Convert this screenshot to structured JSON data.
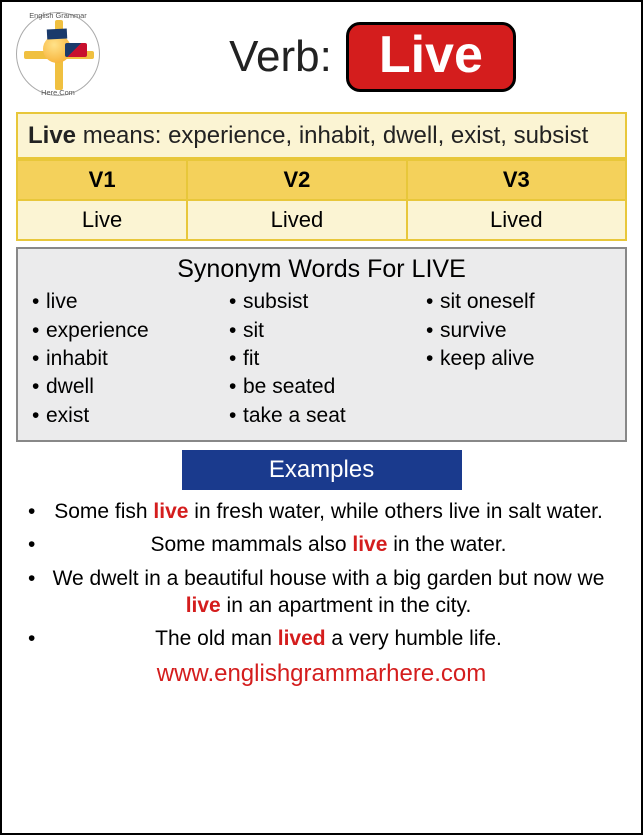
{
  "logo": {
    "top_text": "English Grammar",
    "bottom_text": "Here.Com"
  },
  "header": {
    "verb_label": "Verb:",
    "verb_word": "Live"
  },
  "definition": {
    "word": "Live",
    "remainder": " means: experience, inhabit, dwell, exist, subsist"
  },
  "verb_forms": {
    "columns": [
      "V1",
      "V2",
      "V3"
    ],
    "rows": [
      [
        "Live",
        "Lived",
        "Lived"
      ]
    ],
    "header_bg": "#f4d15b",
    "cell_bg": "#fbf4d3",
    "border_color": "#e8c73a",
    "font_size": 22
  },
  "synonyms": {
    "title": "Synonym Words For LIVE",
    "col1": [
      "live",
      "experience",
      "inhabit",
      "dwell",
      "exist"
    ],
    "col2": [
      "subsist",
      "sit",
      "fit",
      "be seated",
      "take a seat"
    ],
    "col3": [
      "sit oneself",
      "survive",
      "keep alive"
    ],
    "box_bg": "#ebebec",
    "title_fontsize": 25,
    "item_fontsize": 21
  },
  "examples": {
    "header": "Examples",
    "header_bg": "#1a3a8d",
    "highlight_color": "#d41d1d",
    "items": [
      {
        "pre": "Some fish ",
        "hl": "live",
        "post": " in fresh water, while others live in salt water."
      },
      {
        "pre": "Some mammals also ",
        "hl": "live",
        "post": " in the water."
      },
      {
        "pre": "We dwelt in a beautiful house with a big garden but now we ",
        "hl": "live",
        "post": " in an apartment in the city."
      },
      {
        "pre": "The old man ",
        "hl": "lived",
        "post": " a very humble life."
      }
    ]
  },
  "footer": {
    "url": "www.englishgrammarhere.com",
    "color": "#d41d1d"
  },
  "colors": {
    "red": "#d41d1d",
    "yellow_border": "#e8c73a",
    "yellow_fill": "#fbf4d3",
    "yellow_header": "#f4d15b",
    "blue": "#1a3a8d",
    "gray_box": "#ebebec"
  }
}
